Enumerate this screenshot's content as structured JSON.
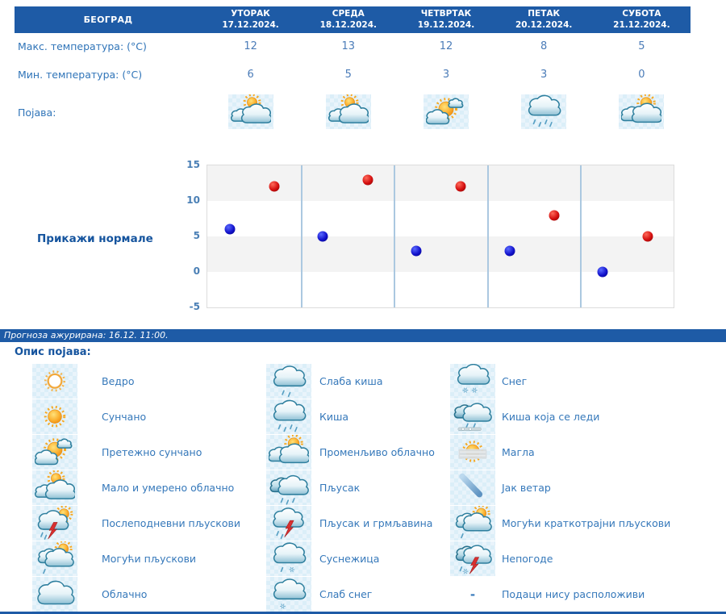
{
  "table": {
    "city": "БЕОГРАД",
    "row_labels": {
      "max": "Макс. температура: (°C)",
      "min": "Мин. температура: (°C)",
      "phenomenon": "Појава:"
    },
    "days": [
      {
        "name": "УТОРАК",
        "date": "17.12.2024.",
        "max": 12,
        "min": 6,
        "icon": "clouds-sun"
      },
      {
        "name": "СРЕДА",
        "date": "18.12.2024.",
        "max": 13,
        "min": 5,
        "icon": "clouds-sun"
      },
      {
        "name": "ЧЕТВРТАК",
        "date": "19.12.2024.",
        "max": 12,
        "min": 3,
        "icon": "sun-cloud"
      },
      {
        "name": "ПЕТАК",
        "date": "20.12.2024.",
        "max": 8,
        "min": 3,
        "icon": "cloud-rain"
      },
      {
        "name": "СУБОТА",
        "date": "21.12.2024.",
        "max": 5,
        "min": 0,
        "icon": "clouds-sun-var"
      }
    ]
  },
  "normals_link": "Прикажи нормале",
  "chart_data": {
    "type": "scatter",
    "categories": [
      "17.12.2024.",
      "18.12.2024.",
      "19.12.2024.",
      "20.12.2024.",
      "21.12.2024."
    ],
    "series": [
      {
        "name": "Макс. температура",
        "color": "#cc0000",
        "values": [
          12,
          13,
          12,
          8,
          5
        ]
      },
      {
        "name": "Мин. температура",
        "color": "#0000cc",
        "values": [
          6,
          5,
          3,
          3,
          0
        ]
      }
    ],
    "ylim": [
      -5,
      15
    ],
    "yticks": [
      15,
      10,
      5,
      0,
      -5
    ],
    "grid": "horizontal bands every 5 units, vertical day separators",
    "legend_position": "none",
    "title": "",
    "xlabel": "",
    "ylabel": ""
  },
  "status_bar": "Прогноза ажурирана:  16.12. 11:00.",
  "legend": {
    "title": "Опис појава:",
    "na_mark": "-",
    "columns": [
      [
        {
          "icon": "sun-outline",
          "label": "Ведро"
        },
        {
          "icon": "sun",
          "label": "Сунчано"
        },
        {
          "icon": "sun-cloud",
          "label": "Претежно сунчано"
        },
        {
          "icon": "clouds-sun",
          "label": "Мало и умерено облачно"
        },
        {
          "icon": "cloud-sun-storm",
          "label": "Послеподневни пљускови"
        },
        {
          "icon": "cloud-sun-rain",
          "label": "Могући пљускови"
        },
        {
          "icon": "cloud",
          "label": "Облачно"
        }
      ],
      [
        {
          "icon": "cloud-light-rain",
          "label": "Слаба киша"
        },
        {
          "icon": "cloud-rain",
          "label": "Киша"
        },
        {
          "icon": "clouds-sun-var",
          "label": "Променљиво облачно"
        },
        {
          "icon": "clouds-rain",
          "label": "Пљусак"
        },
        {
          "icon": "cloud-storm",
          "label": "Пљусак и грмљавина"
        },
        {
          "icon": "cloud-rain-snow",
          "label": "Суснежица"
        },
        {
          "icon": "cloud-light-snow",
          "label": "Слаб снег"
        }
      ],
      [
        {
          "icon": "cloud-snow",
          "label": "Снег"
        },
        {
          "icon": "clouds-freezing-rain",
          "label": "Киша која се леди"
        },
        {
          "icon": "fog",
          "label": "Магла"
        },
        {
          "icon": "wind",
          "label": "Јак ветар"
        },
        {
          "icon": "cloud-sun-rain",
          "label": "Могући краткотрајни пљускови"
        },
        {
          "icon": "storm",
          "label": "Непогоде"
        },
        {
          "icon": "dash",
          "label": "Подаци нису расположиви"
        }
      ]
    ]
  },
  "colors": {
    "header_blue": "#1e5ba6",
    "label_blue": "#2f74b8",
    "value_blue": "#4b7cb8",
    "link_blue": "#15549e",
    "band_gray": "#f3f3f3",
    "day_separator": "#abc8e0",
    "point_max": "#cc0000",
    "point_min": "#0000cc"
  }
}
